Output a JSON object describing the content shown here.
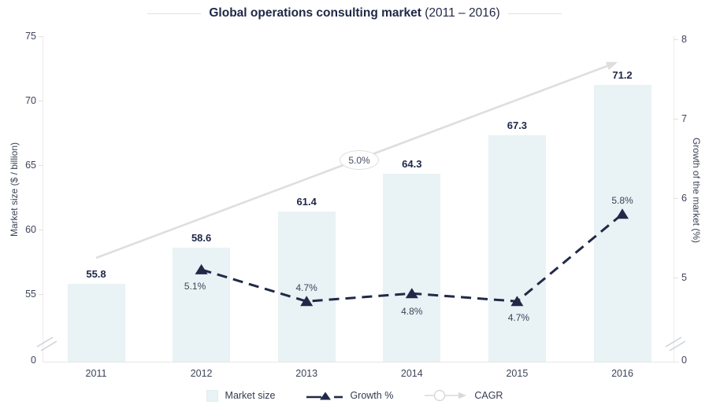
{
  "title": {
    "main": "Global operations consulting market",
    "suffix": " (2011 – 2016)"
  },
  "legend": {
    "market_size": "Market size",
    "growth": "Growth %",
    "cagr": "CAGR"
  },
  "colors": {
    "bar_fill": "#e9f2f4",
    "growth_line": "#212947",
    "cagr_line": "#dedede",
    "navy_text": "#20284a",
    "axis_text": "#3d4459"
  },
  "chart_data": {
    "type": "bar",
    "title": "Global operations consulting market (2011 – 2016)",
    "categories": [
      "2011",
      "2012",
      "2013",
      "2014",
      "2015",
      "2016"
    ],
    "series": [
      {
        "name": "Market size",
        "type": "bar",
        "axis": "left",
        "values": [
          55.8,
          58.6,
          61.4,
          64.3,
          67.3,
          71.2
        ],
        "labels": [
          "55.8",
          "58.6",
          "61.4",
          "64.3",
          "67.3",
          "71.2"
        ]
      },
      {
        "name": "Growth %",
        "type": "line",
        "axis": "right",
        "values": [
          null,
          5.1,
          4.7,
          4.8,
          4.7,
          5.8
        ],
        "labels": [
          "",
          "5.1%",
          "4.7%",
          "4.8%",
          "4.7%",
          "5.8%"
        ]
      },
      {
        "name": "CAGR",
        "type": "trend_arrow",
        "value": 5.0,
        "annotation": "5.0%"
      }
    ],
    "ylabel_left": "Market size ($ / billion)",
    "ylabel_right": "Growth of the market (%)",
    "left_axis_ticks": [
      75,
      70,
      65,
      60,
      55,
      0
    ],
    "right_axis_ticks": [
      8,
      7,
      6,
      5,
      0
    ],
    "axis_break": true,
    "grid": false,
    "legend_position": "bottom"
  }
}
